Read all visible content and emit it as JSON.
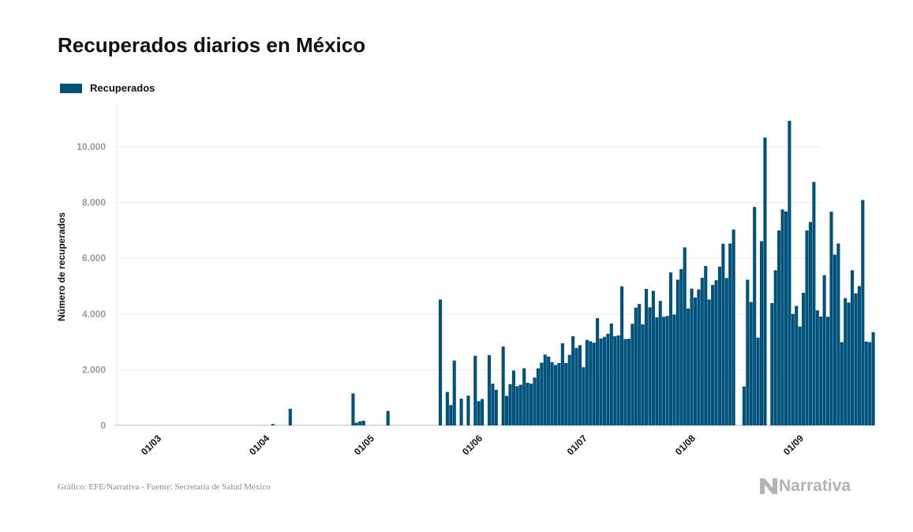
{
  "title": "Recuperados diarios en México",
  "legend": {
    "label": "Recuperados",
    "color": "#00527a"
  },
  "source": "Gráfico: EFE/Narrativa - Fuente: Secretaría de Salud México",
  "brand": {
    "name": "Narrativa",
    "icon": "narrativa-logo-icon"
  },
  "chart_data": {
    "type": "bar",
    "title": "Recuperados diarios en México",
    "ylabel": "Número de recuperados",
    "xlabel": "",
    "ylim": [
      0,
      11500
    ],
    "yticks": [
      0,
      2000,
      4000,
      6000,
      8000,
      10000
    ],
    "ytick_labels": [
      "0",
      "2.000",
      "4.000",
      "6.000",
      "8.000",
      "10.000"
    ],
    "xticks": [
      "01/03",
      "01/04",
      "01/05",
      "01/06",
      "01/07",
      "01/08",
      "01/09"
    ],
    "x_start": "2020-02-20",
    "grid": true,
    "legend_position": "top-left",
    "bar_color": "#00527a",
    "series": [
      {
        "name": "Recuperados",
        "values": [
          0,
          0,
          0,
          0,
          0,
          0,
          0,
          0,
          0,
          0,
          0,
          0,
          0,
          0,
          0,
          0,
          0,
          0,
          0,
          0,
          0,
          0,
          0,
          0,
          0,
          0,
          0,
          0,
          0,
          0,
          0,
          0,
          0,
          0,
          0,
          0,
          0,
          0,
          0,
          0,
          0,
          0,
          0,
          0,
          0,
          50,
          0,
          0,
          0,
          0,
          600,
          0,
          0,
          0,
          0,
          0,
          0,
          0,
          0,
          0,
          0,
          0,
          0,
          0,
          0,
          0,
          0,
          0,
          1150,
          100,
          150,
          170,
          0,
          0,
          0,
          0,
          0,
          0,
          520,
          0,
          0,
          0,
          0,
          0,
          0,
          0,
          0,
          0,
          0,
          0,
          0,
          0,
          0,
          4520,
          0,
          1200,
          730,
          2330,
          0,
          960,
          0,
          1070,
          0,
          2500,
          870,
          950,
          0,
          2520,
          1500,
          1280,
          0,
          2830,
          1060,
          1480,
          1970,
          1410,
          1460,
          2050,
          1530,
          1500,
          1720,
          2050,
          2250,
          2540,
          2470,
          2270,
          2170,
          2240,
          2950,
          2240,
          2530,
          3200,
          2780,
          2880,
          2090,
          3070,
          3020,
          2970,
          3850,
          3120,
          3180,
          3290,
          3660,
          3200,
          3230,
          4990,
          3100,
          3110,
          3650,
          4230,
          4360,
          3630,
          4900,
          4240,
          4830,
          3880,
          4470,
          3900,
          3930,
          5490,
          3980,
          5230,
          5610,
          6390,
          4200,
          4910,
          4590,
          4880,
          5300,
          5720,
          4520,
          5040,
          5210,
          5700,
          6520,
          5290,
          6530,
          7030,
          0,
          0,
          1400,
          5230,
          4430,
          7840,
          3150,
          6610,
          10330,
          0,
          4390,
          5570,
          7000,
          7750,
          7680,
          10930,
          4000,
          4290,
          3550,
          4760,
          7000,
          7300,
          8740,
          4130,
          3910,
          5390,
          3900,
          7670,
          6130,
          6530,
          2990,
          4570,
          4410,
          5570,
          4740,
          5000,
          8090,
          3010,
          2990,
          3350
        ]
      }
    ]
  }
}
